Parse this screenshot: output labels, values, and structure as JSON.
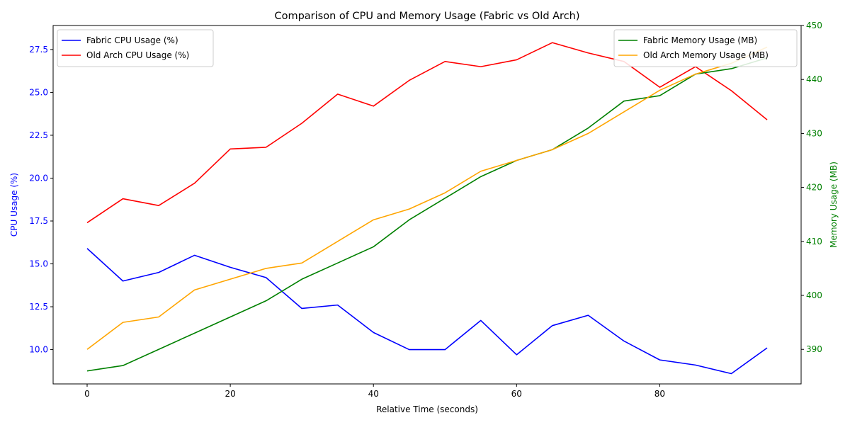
{
  "chart_data": {
    "type": "line",
    "title": "Comparison of CPU and Memory Usage (Fabric vs Old Arch)",
    "xlabel": "Relative Time (seconds)",
    "ylabel_left": "CPU Usage (%)",
    "ylabel_right": "Memory Usage (MB)",
    "x": [
      0,
      5,
      10,
      15,
      20,
      25,
      30,
      35,
      40,
      45,
      50,
      55,
      60,
      65,
      70,
      75,
      80,
      85,
      90,
      95
    ],
    "xlim": [
      -4.75,
      99.75
    ],
    "ylim_left": [
      8.0,
      28.9
    ],
    "ylim_right": [
      383.6,
      450.0
    ],
    "xticks": [
      0,
      20,
      40,
      60,
      80
    ],
    "yticks_left": [
      10.0,
      12.5,
      15.0,
      17.5,
      20.0,
      22.5,
      25.0,
      27.5
    ],
    "ytick_labels_left": [
      "10.0",
      "12.5",
      "15.0",
      "17.5",
      "20.0",
      "22.5",
      "25.0",
      "27.5"
    ],
    "yticks_right": [
      390,
      400,
      410,
      420,
      430,
      440,
      450
    ],
    "left_axis_color": "#0000ff",
    "right_axis_color": "#008000",
    "grid": false,
    "legend_left_placement": "upper-left",
    "legend_right_placement": "upper-right",
    "series": [
      {
        "name": "Fabric CPU Usage (%)",
        "axis": "left",
        "color": "#0000ff",
        "values": [
          15.9,
          14.0,
          14.5,
          15.5,
          14.8,
          14.2,
          12.4,
          12.6,
          11.0,
          10.0,
          10.0,
          11.7,
          9.7,
          11.4,
          12.0,
          10.5,
          9.4,
          9.1,
          8.6,
          10.1
        ]
      },
      {
        "name": "Old Arch CPU Usage (%)",
        "axis": "left",
        "color": "#ff0000",
        "values": [
          17.4,
          18.8,
          18.4,
          19.7,
          21.7,
          21.8,
          23.2,
          24.9,
          24.2,
          25.7,
          26.8,
          26.5,
          26.9,
          27.9,
          27.3,
          26.8,
          25.3,
          26.5,
          25.1,
          23.4
        ]
      },
      {
        "name": "Fabric Memory Usage (MB)",
        "axis": "right",
        "color": "#008000",
        "values": [
          386,
          387,
          390,
          393,
          396,
          399,
          403,
          406,
          409,
          414,
          418,
          422,
          425,
          427,
          431,
          436,
          437,
          441,
          442,
          444
        ]
      },
      {
        "name": "Old Arch Memory Usage (MB)",
        "axis": "right",
        "color": "#ffa500",
        "values": [
          390,
          395,
          396,
          401,
          403,
          405,
          406,
          410,
          414,
          416,
          419,
          423,
          425,
          427,
          430,
          434,
          438,
          441,
          443,
          446
        ]
      }
    ]
  }
}
